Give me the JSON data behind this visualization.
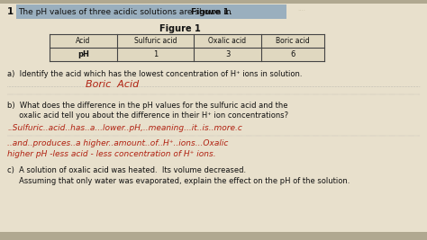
{
  "question_number": "1",
  "question_text": "The pH values of three acidic solutions are shown in ",
  "question_bold": "Figure 1.",
  "figure_title": "Figure 1",
  "table_headers": [
    "Acid",
    "Sulfuric acid",
    "Oxalic acid",
    "Boric acid"
  ],
  "table_row_label": "pH",
  "table_values": [
    "1",
    "3",
    "6"
  ],
  "part_a_question": "a)  Identify the acid which has the lowest concentration of H⁺ ions in solution.",
  "part_a_answer": "Boric  Acid",
  "part_b_q1": "b)  What does the difference in the pH values for the sulfuric acid and the",
  "part_b_q2": "     oxalic acid tell you about the difference in their H⁺ ion concentrations?",
  "part_b_a1": "..Sulfuric..acid..has..a...lower..pH,..meaning...it..is..more.c",
  "part_b_a2": "..and..produces..a higher..amount..of..H⁺..ions...Oxalic",
  "part_b_a3": "higher pH -less acid - less concentration of H⁺ ions.",
  "part_c_q1": "c)  A solution of oxalic acid was heated.  Its volume decreased.",
  "part_c_q2": "     Assuming that only water was evaporated, explain the effect on the pH of the solution.",
  "bg_color": "#cdc5aa",
  "paper_color": "#e8e0cc",
  "highlight_color": "#9aafbe",
  "answer_color": "#b02010",
  "text_color": "#111111",
  "dot_color": "#999999",
  "table_line_color": "#444444",
  "table_bg": "#e0d8c0"
}
